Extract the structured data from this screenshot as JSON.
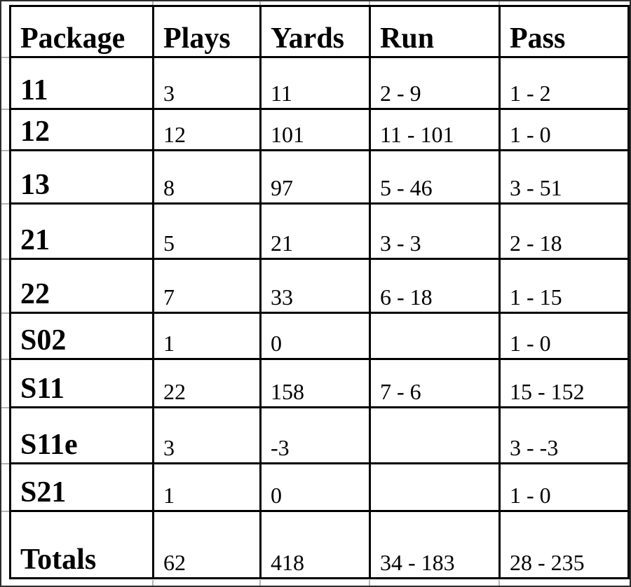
{
  "table": {
    "columns": [
      "Package",
      "Plays",
      "Yards",
      "Run",
      "Pass"
    ],
    "rows": [
      {
        "package": "11",
        "plays": "3",
        "yards": "11",
        "run": "2 - 9",
        "pass": "1 - 2"
      },
      {
        "package": "12",
        "plays": "12",
        "yards": "101",
        "run": "11 - 101",
        "pass": "1 - 0"
      },
      {
        "package": "13",
        "plays": "8",
        "yards": "97",
        "run": "5 - 46",
        "pass": "3 - 51"
      },
      {
        "package": "21",
        "plays": "5",
        "yards": "21",
        "run": "3 - 3",
        "pass": "2 - 18"
      },
      {
        "package": "22",
        "plays": "7",
        "yards": "33",
        "run": "6 - 18",
        "pass": "1 - 15"
      },
      {
        "package": "S02",
        "plays": "1",
        "yards": "0",
        "run": "",
        "pass": "1 - 0"
      },
      {
        "package": "S11",
        "plays": "22",
        "yards": "158",
        "run": "7 - 6",
        "pass": "15 - 152"
      },
      {
        "package": "S11e",
        "plays": "3",
        "yards": "-3",
        "run": "",
        "pass": "3 - -3"
      },
      {
        "package": "S21",
        "plays": "1",
        "yards": "0",
        "run": "",
        "pass": "1 - 0"
      },
      {
        "package": "Totals",
        "plays": "62",
        "yards": "418",
        "run": "34 - 183",
        "pass": "28 - 235"
      }
    ]
  },
  "chart_data": {
    "type": "table",
    "title": "",
    "columns": [
      "Package",
      "Plays",
      "Yards",
      "Run",
      "Pass"
    ],
    "rows": [
      [
        "11",
        3,
        11,
        "2 - 9",
        "1 - 2"
      ],
      [
        "12",
        12,
        101,
        "11 - 101",
        "1 - 0"
      ],
      [
        "13",
        8,
        97,
        "5 - 46",
        "3 - 51"
      ],
      [
        "21",
        5,
        21,
        "3 - 3",
        "2 - 18"
      ],
      [
        "22",
        7,
        33,
        "6 - 18",
        "1 - 15"
      ],
      [
        "S02",
        1,
        0,
        "",
        "1 - 0"
      ],
      [
        "S11",
        22,
        158,
        "7 - 6",
        "15 - 152"
      ],
      [
        "S11e",
        3,
        -3,
        "",
        "3 - -3"
      ],
      [
        "S21",
        1,
        0,
        "",
        "1 - 0"
      ],
      [
        "Totals",
        62,
        418,
        "34 - 183",
        "28 - 235"
      ]
    ],
    "layout_hints": {
      "grid": "on",
      "header_row": true,
      "totals_row": true
    }
  },
  "colors": {
    "background": "#ffffff",
    "border": "#000000",
    "text": "#000000",
    "outer_frame": "#2d2d2d"
  }
}
